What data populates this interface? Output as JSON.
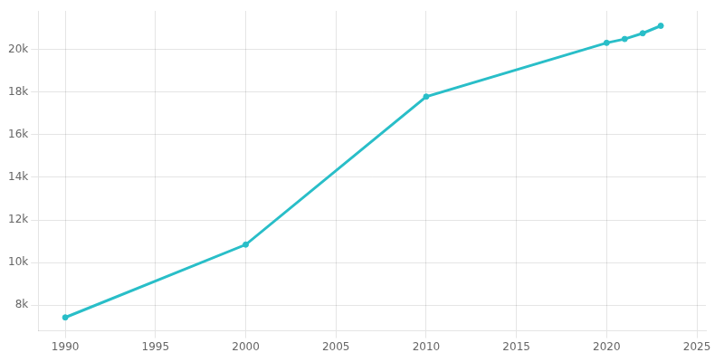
{
  "chart_data": {
    "type": "line",
    "x": [
      1990,
      2000,
      2010,
      2020,
      2021,
      2022,
      2023
    ],
    "values": [
      7430,
      10843,
      17780,
      20300,
      20480,
      20750,
      21100
    ],
    "color": "#29BEC8",
    "marker": "circle",
    "xlim": [
      1988.5,
      2025.5
    ],
    "xticks": [
      1990,
      1995,
      2000,
      2005,
      2010,
      2015,
      2020,
      2025
    ],
    "ylim": [
      6800,
      21800
    ],
    "yticks": [
      {
        "value": 8000,
        "label": "8k"
      },
      {
        "value": 10000,
        "label": "10k"
      },
      {
        "value": 12000,
        "label": "12k"
      },
      {
        "value": 14000,
        "label": "14k"
      },
      {
        "value": 16000,
        "label": "16k"
      },
      {
        "value": 18000,
        "label": "18k"
      },
      {
        "value": 20000,
        "label": "20k"
      }
    ],
    "grid": true
  }
}
